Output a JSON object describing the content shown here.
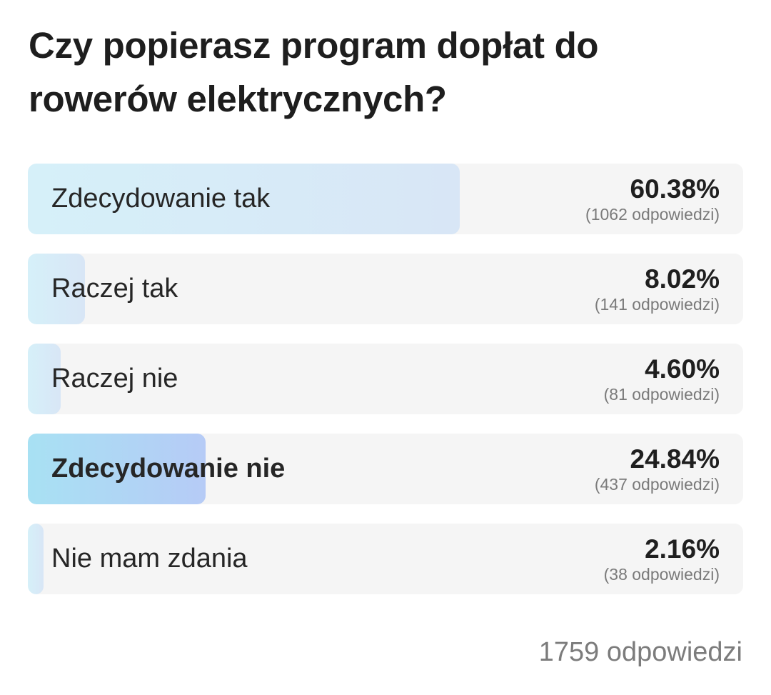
{
  "poll": {
    "question": "Czy popierasz program dopłat do rowerów elektrycznych?",
    "total_label": "1759 odpowiedzi",
    "colors": {
      "track": "#f5f5f5",
      "fill_start": "#d6f0f9",
      "fill_end": "#d8e6f6",
      "selected_fill_start": "#a8e1f3",
      "selected_fill_end": "#b6cbf6"
    },
    "options": [
      {
        "label": "Zdecydowanie tak",
        "percent_label": "60.38%",
        "share": 0.6038,
        "count_label": "(1062 odpowiedzi)",
        "selected": false
      },
      {
        "label": "Raczej tak",
        "percent_label": "8.02%",
        "share": 0.0802,
        "count_label": "(141 odpowiedzi)",
        "selected": false
      },
      {
        "label": "Raczej nie",
        "percent_label": "4.60%",
        "share": 0.046,
        "count_label": "(81 odpowiedzi)",
        "selected": false
      },
      {
        "label": "Zdecydowanie nie",
        "percent_label": "24.84%",
        "share": 0.2484,
        "count_label": "(437 odpowiedzi)",
        "selected": true
      },
      {
        "label": "Nie mam zdania",
        "percent_label": "2.16%",
        "share": 0.0216,
        "count_label": "(38 odpowiedzi)",
        "selected": false
      }
    ]
  }
}
